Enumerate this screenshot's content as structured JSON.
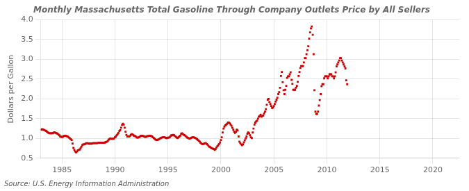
{
  "chart_data": {
    "type": "scatter",
    "title": "Monthly Massachusetts Total Gasoline Through Company Outlets Price by All Sellers",
    "ylabel": "Dollars per Gallon",
    "annotation": "Source: U.S. Energy Information Administration",
    "color": "#cc0000",
    "marker": "square",
    "grid": true,
    "xlim": [
      1983.0,
      2022.5
    ],
    "xticks": [
      1985,
      1990,
      1995,
      2000,
      2005,
      2010,
      2015,
      2020
    ],
    "ylim": [
      0.5,
      4.0
    ],
    "yticks": [
      0.5,
      {
        "value": 1.0,
        "label": "1.0"
      },
      1.5,
      {
        "value": 2.0,
        "label": "2.0"
      },
      2.5,
      {
        "value": 3.0,
        "label": "3.0"
      },
      3.5,
      {
        "value": 4.0,
        "label": "4.0"
      }
    ],
    "x": [
      1983.0,
      1983.08,
      1983.17,
      1983.25,
      1983.33,
      1983.42,
      1983.5,
      1983.58,
      1983.67,
      1983.75,
      1983.83,
      1983.92,
      1984.0,
      1984.08,
      1984.17,
      1984.25,
      1984.33,
      1984.42,
      1984.5,
      1984.58,
      1984.67,
      1984.75,
      1984.83,
      1984.92,
      1985.0,
      1985.08,
      1985.17,
      1985.25,
      1985.33,
      1985.42,
      1985.5,
      1985.58,
      1985.67,
      1985.75,
      1985.83,
      1985.92,
      1986.0,
      1986.08,
      1986.17,
      1986.25,
      1986.33,
      1986.42,
      1986.5,
      1986.58,
      1986.67,
      1986.75,
      1986.83,
      1986.92,
      1987.0,
      1987.08,
      1987.17,
      1987.25,
      1987.33,
      1987.42,
      1987.5,
      1987.58,
      1987.67,
      1987.75,
      1987.83,
      1987.92,
      1988.0,
      1988.08,
      1988.17,
      1988.25,
      1988.33,
      1988.42,
      1988.5,
      1988.58,
      1988.67,
      1988.75,
      1988.83,
      1988.92,
      1989.0,
      1989.08,
      1989.17,
      1989.25,
      1989.33,
      1989.42,
      1989.5,
      1989.58,
      1989.67,
      1989.75,
      1989.83,
      1989.92,
      1990.0,
      1990.08,
      1990.17,
      1990.25,
      1990.33,
      1990.42,
      1990.5,
      1990.58,
      1990.67,
      1990.75,
      1990.83,
      1990.92,
      1991.0,
      1991.08,
      1991.17,
      1991.25,
      1991.33,
      1991.42,
      1991.5,
      1991.58,
      1991.67,
      1991.75,
      1991.83,
      1991.92,
      1992.0,
      1992.08,
      1992.17,
      1992.25,
      1992.33,
      1992.42,
      1992.5,
      1992.58,
      1992.67,
      1992.75,
      1992.83,
      1992.92,
      1993.0,
      1993.08,
      1993.17,
      1993.25,
      1993.33,
      1993.42,
      1993.5,
      1993.58,
      1993.67,
      1993.75,
      1993.83,
      1993.92,
      1994.0,
      1994.08,
      1994.17,
      1994.25,
      1994.33,
      1994.42,
      1994.5,
      1994.58,
      1994.67,
      1994.75,
      1994.83,
      1994.92,
      1995.0,
      1995.08,
      1995.17,
      1995.25,
      1995.33,
      1995.42,
      1995.5,
      1995.58,
      1995.67,
      1995.75,
      1995.83,
      1995.92,
      1996.0,
      1996.08,
      1996.17,
      1996.25,
      1996.33,
      1996.42,
      1996.5,
      1996.58,
      1996.67,
      1996.75,
      1996.83,
      1996.92,
      1997.0,
      1997.08,
      1997.17,
      1997.25,
      1997.33,
      1997.42,
      1997.5,
      1997.58,
      1997.67,
      1997.75,
      1997.83,
      1997.92,
      1998.0,
      1998.08,
      1998.17,
      1998.25,
      1998.33,
      1998.42,
      1998.5,
      1998.58,
      1998.67,
      1998.75,
      1998.83,
      1998.92,
      1999.0,
      1999.08,
      1999.17,
      1999.25,
      1999.33,
      1999.42,
      1999.5,
      1999.58,
      1999.67,
      1999.75,
      1999.83,
      1999.92,
      2000.0,
      2000.08,
      2000.17,
      2000.25,
      2000.33,
      2000.42,
      2000.5,
      2000.58,
      2000.67,
      2000.75,
      2000.83,
      2000.92,
      2001.0,
      2001.08,
      2001.17,
      2001.25,
      2001.33,
      2001.42,
      2001.5,
      2001.58,
      2001.67,
      2001.75,
      2001.83,
      2001.92,
      2002.0,
      2002.08,
      2002.17,
      2002.25,
      2002.33,
      2002.42,
      2002.5,
      2002.58,
      2002.67,
      2002.75,
      2002.83,
      2002.92,
      2003.0,
      2003.08,
      2003.17,
      2003.25,
      2003.33,
      2003.42,
      2003.5,
      2003.58,
      2003.67,
      2003.75,
      2003.83,
      2003.92,
      2004.0,
      2004.08,
      2004.17,
      2004.25,
      2004.33,
      2004.42,
      2004.5,
      2004.58,
      2004.67,
      2004.75,
      2004.83,
      2004.92,
      2005.0,
      2005.08,
      2005.17,
      2005.25,
      2005.33,
      2005.42,
      2005.5,
      2005.58,
      2005.67,
      2005.75,
      2005.83,
      2005.92,
      2006.0,
      2006.08,
      2006.17,
      2006.25,
      2006.33,
      2006.42,
      2006.5,
      2006.58,
      2006.67,
      2006.75,
      2006.83,
      2006.92,
      2007.0,
      2007.08,
      2007.17,
      2007.25,
      2007.33,
      2007.42,
      2007.5,
      2007.58,
      2007.67,
      2007.75,
      2007.83,
      2007.92,
      2008.0,
      2008.08,
      2008.17,
      2008.25,
      2008.33,
      2008.42,
      2008.5,
      2008.58,
      2008.67,
      2008.75,
      2008.83,
      2008.92,
      2009.0,
      2009.08,
      2009.17,
      2009.25,
      2009.33,
      2009.42,
      2009.5,
      2009.58,
      2009.67,
      2009.75,
      2009.83,
      2009.92,
      2010.0,
      2010.08,
      2010.17,
      2010.25,
      2010.33,
      2010.42,
      2010.5,
      2010.58,
      2010.67,
      2010.75,
      2010.83,
      2010.92,
      2011.0,
      2011.08,
      2011.17,
      2011.25,
      2011.33,
      2011.42,
      2011.5,
      2011.58,
      2011.67,
      2011.75,
      2011.83,
      2011.92
    ],
    "values": [
      1.22,
      1.23,
      1.23,
      1.22,
      1.21,
      1.2,
      1.19,
      1.17,
      1.15,
      1.14,
      1.13,
      1.13,
      1.13,
      1.13,
      1.14,
      1.15,
      1.15,
      1.14,
      1.13,
      1.12,
      1.1,
      1.08,
      1.05,
      1.04,
      1.04,
      1.04,
      1.06,
      1.07,
      1.07,
      1.06,
      1.05,
      1.04,
      1.02,
      1.0,
      0.98,
      0.96,
      0.87,
      0.76,
      0.71,
      0.67,
      0.65,
      0.67,
      0.7,
      0.71,
      0.72,
      0.75,
      0.79,
      0.83,
      0.85,
      0.85,
      0.86,
      0.87,
      0.88,
      0.88,
      0.87,
      0.87,
      0.87,
      0.87,
      0.87,
      0.88,
      0.88,
      0.88,
      0.88,
      0.88,
      0.88,
      0.89,
      0.89,
      0.89,
      0.89,
      0.89,
      0.89,
      0.89,
      0.89,
      0.9,
      0.91,
      0.92,
      0.94,
      0.97,
      0.99,
      1.0,
      0.99,
      0.99,
      0.99,
      1.0,
      1.03,
      1.05,
      1.08,
      1.11,
      1.14,
      1.19,
      1.21,
      1.27,
      1.34,
      1.37,
      1.35,
      1.27,
      1.17,
      1.09,
      1.05,
      1.05,
      1.05,
      1.06,
      1.09,
      1.11,
      1.1,
      1.08,
      1.06,
      1.06,
      1.04,
      1.02,
      1.02,
      1.03,
      1.04,
      1.06,
      1.07,
      1.07,
      1.06,
      1.05,
      1.04,
      1.04,
      1.05,
      1.06,
      1.06,
      1.07,
      1.07,
      1.06,
      1.05,
      1.03,
      1.01,
      0.99,
      0.97,
      0.96,
      0.96,
      0.97,
      0.98,
      1.0,
      1.01,
      1.02,
      1.03,
      1.03,
      1.03,
      1.02,
      1.01,
      1.01,
      1.02,
      1.02,
      1.03,
      1.06,
      1.08,
      1.08,
      1.09,
      1.08,
      1.06,
      1.04,
      1.02,
      1.01,
      1.03,
      1.05,
      1.07,
      1.12,
      1.13,
      1.11,
      1.09,
      1.08,
      1.06,
      1.04,
      1.02,
      1.01,
      1.0,
      1.0,
      1.01,
      1.02,
      1.03,
      1.03,
      1.02,
      1.01,
      1.0,
      0.98,
      0.96,
      0.94,
      0.92,
      0.89,
      0.87,
      0.86,
      0.86,
      0.87,
      0.88,
      0.88,
      0.86,
      0.84,
      0.81,
      0.79,
      0.78,
      0.76,
      0.75,
      0.74,
      0.73,
      0.71,
      0.73,
      0.77,
      0.8,
      0.83,
      0.86,
      0.9,
      0.96,
      1.03,
      1.15,
      1.25,
      1.3,
      1.33,
      1.35,
      1.37,
      1.4,
      1.4,
      1.38,
      1.35,
      1.32,
      1.27,
      1.22,
      1.17,
      1.14,
      1.17,
      1.22,
      1.2,
      1.05,
      0.92,
      0.88,
      0.85,
      0.83,
      0.85,
      0.9,
      0.95,
      1.0,
      1.05,
      1.12,
      1.15,
      1.13,
      1.08,
      1.03,
      1.01,
      1.15,
      1.25,
      1.35,
      1.4,
      1.43,
      1.45,
      1.5,
      1.55,
      1.57,
      1.6,
      1.55,
      1.57,
      1.58,
      1.63,
      1.68,
      1.74,
      1.85,
      1.98,
      2.0,
      1.92,
      1.87,
      1.82,
      1.77,
      1.78,
      1.82,
      1.87,
      1.93,
      1.98,
      2.03,
      2.12,
      2.17,
      2.28,
      2.58,
      2.68,
      2.42,
      2.22,
      2.12,
      2.23,
      2.33,
      2.53,
      2.57,
      2.57,
      2.62,
      2.67,
      2.48,
      2.38,
      2.23,
      2.23,
      2.23,
      2.28,
      2.33,
      2.43,
      2.58,
      2.68,
      2.78,
      2.83,
      2.83,
      2.83,
      2.92,
      3.03,
      3.03,
      3.13,
      3.23,
      3.33,
      3.52,
      3.68,
      3.78,
      3.83,
      3.62,
      3.13,
      2.22,
      1.68,
      1.62,
      1.62,
      1.68,
      1.83,
      1.97,
      2.12,
      2.32,
      2.37,
      2.37,
      2.52,
      2.57,
      2.57,
      2.57,
      2.52,
      2.57,
      2.62,
      2.62,
      2.62,
      2.57,
      2.57,
      2.52,
      2.57,
      2.67,
      2.82,
      2.87,
      2.92,
      2.97,
      3.03,
      3.03,
      2.97,
      2.92,
      2.87,
      2.82,
      2.77,
      2.47,
      2.37
    ]
  }
}
